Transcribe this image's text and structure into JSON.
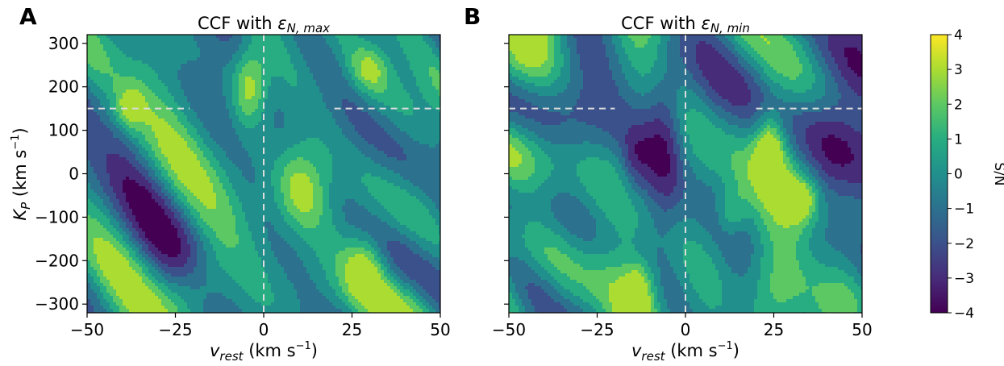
{
  "chart_data": [
    {
      "type": "heatmap",
      "panel_label": "A",
      "title_prefix": "CCF with ",
      "title_symbol": "ε",
      "title_subscript": "N, max",
      "xlabel_symbol": "v",
      "xlabel_subscript": "rest",
      "xlabel_unit": " (km s",
      "xlabel_exp": "−1",
      "xlabel_close": ")",
      "ylabel_symbol": "K",
      "ylabel_subscript": "P",
      "ylabel_unit": " (km s",
      "ylabel_exp": "−1",
      "ylabel_close": ")",
      "xlim": [
        -50,
        50
      ],
      "ylim": [
        -320,
        320
      ],
      "xticks": [
        -50,
        -25,
        0,
        25,
        50
      ],
      "xtick_labels": [
        "−50",
        "−25",
        "0",
        "25",
        "50"
      ],
      "yticks": [
        300,
        200,
        100,
        0,
        -100,
        -200,
        -300
      ],
      "ytick_labels": [
        "300",
        "200",
        "100",
        "0",
        "−100",
        "−200",
        "−300"
      ],
      "marker_vline_x": 0,
      "marker_hline_y": 150,
      "marker_hline_gap": [
        -21,
        20
      ],
      "peak_regions": [
        {
          "x": -4,
          "y": 200,
          "sx": 3.5,
          "sy": 65,
          "amp": 3.9
        },
        {
          "x": 11,
          "y": -30,
          "sx": 5,
          "sy": 70,
          "amp": 2.8
        },
        {
          "x": 29,
          "y": -210,
          "sx": 4,
          "sy": 55,
          "amp": 2.8
        },
        {
          "x": -19,
          "y": -260,
          "sx": 6,
          "sy": 60,
          "amp": 2.6
        },
        {
          "x": -38,
          "y": 150,
          "sx": 3,
          "sy": 35,
          "amp": 2.4
        },
        {
          "x": 30,
          "y": 240,
          "sx": 4,
          "sy": 40,
          "amp": 2.3
        }
      ]
    },
    {
      "type": "heatmap",
      "panel_label": "B",
      "title_prefix": "CCF with ",
      "title_symbol": "ε",
      "title_subscript": "N, min",
      "xlabel_symbol": "v",
      "xlabel_subscript": "rest",
      "xlabel_unit": " (km s",
      "xlabel_exp": "−1",
      "xlabel_close": ")",
      "xlim": [
        -50,
        50
      ],
      "ylim": [
        -320,
        320
      ],
      "xticks": [
        -50,
        -25,
        0,
        25,
        50
      ],
      "xtick_labels": [
        "−50",
        "−25",
        "0",
        "25",
        "50"
      ],
      "marker_vline_x": 0,
      "marker_hline_y": 150,
      "marker_hline_gap": [
        -20,
        20
      ],
      "peak_regions": [
        {
          "x": 24,
          "y": 70,
          "sx": 3,
          "sy": 55,
          "amp": 3.6
        },
        {
          "x": 13,
          "y": -90,
          "sx": 3,
          "sy": 40,
          "amp": 2.6
        },
        {
          "x": 33,
          "y": -60,
          "sx": 3,
          "sy": 35,
          "amp": 2.6
        },
        {
          "x": -13,
          "y": -260,
          "sx": 3,
          "sy": 40,
          "amp": 2.4
        },
        {
          "x": -6,
          "y": 80,
          "sx": 4,
          "sy": 130,
          "amp": -3.3
        },
        {
          "x": -14,
          "y": 30,
          "sx": 3,
          "sy": 60,
          "amp": -2.0
        }
      ]
    }
  ],
  "colorbar": {
    "label": "S/N",
    "vmin": -4,
    "vmax": 4,
    "ticks": [
      4,
      3,
      2,
      1,
      0,
      -1,
      -2,
      -3,
      -4
    ],
    "tick_labels": [
      "4",
      "3",
      "2",
      "1",
      "0",
      "−1",
      "−2",
      "−3",
      "−4"
    ],
    "colormap": "viridis",
    "colors": [
      "#440154",
      "#472c7a",
      "#3b518b",
      "#2c718e",
      "#21908d",
      "#27ad81",
      "#5cc863",
      "#aadc32",
      "#fde725"
    ]
  },
  "marker_color": "#dcdcdc"
}
